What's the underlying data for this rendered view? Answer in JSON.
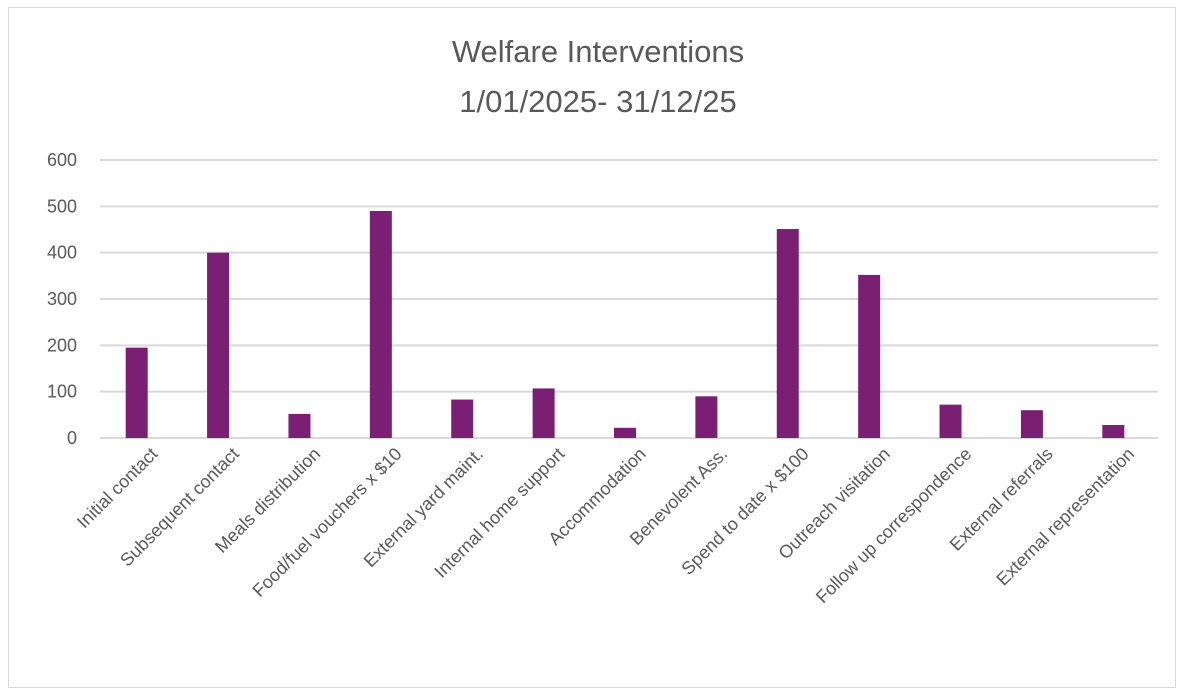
{
  "chart_data": {
    "type": "bar",
    "title": [
      "Welfare Interventions",
      "1/01/2025- 31/12/25"
    ],
    "categories": [
      "Initial contact",
      "Subsequent contact",
      "Meals distribution",
      "Food/fuel vouchers x $10",
      "External yard maint.",
      "Internal home support",
      "Accommodation",
      "Benevolent Ass.",
      "Spend to date x $100",
      "Outreach visitation",
      "Follow up correspondence",
      "External referrals",
      "External representation"
    ],
    "values": [
      195,
      400,
      52,
      490,
      83,
      107,
      22,
      90,
      451,
      352,
      72,
      60,
      28
    ],
    "ylim": [
      0,
      600
    ],
    "yticks": [
      "0",
      "100",
      "200",
      "300",
      "400",
      "500",
      "600"
    ],
    "xlabel": "",
    "ylabel": "",
    "grid": true,
    "legend": "none",
    "colors": {
      "bar": "#7b1f75",
      "grid": "#d9d9d9",
      "text": "#595959"
    }
  }
}
